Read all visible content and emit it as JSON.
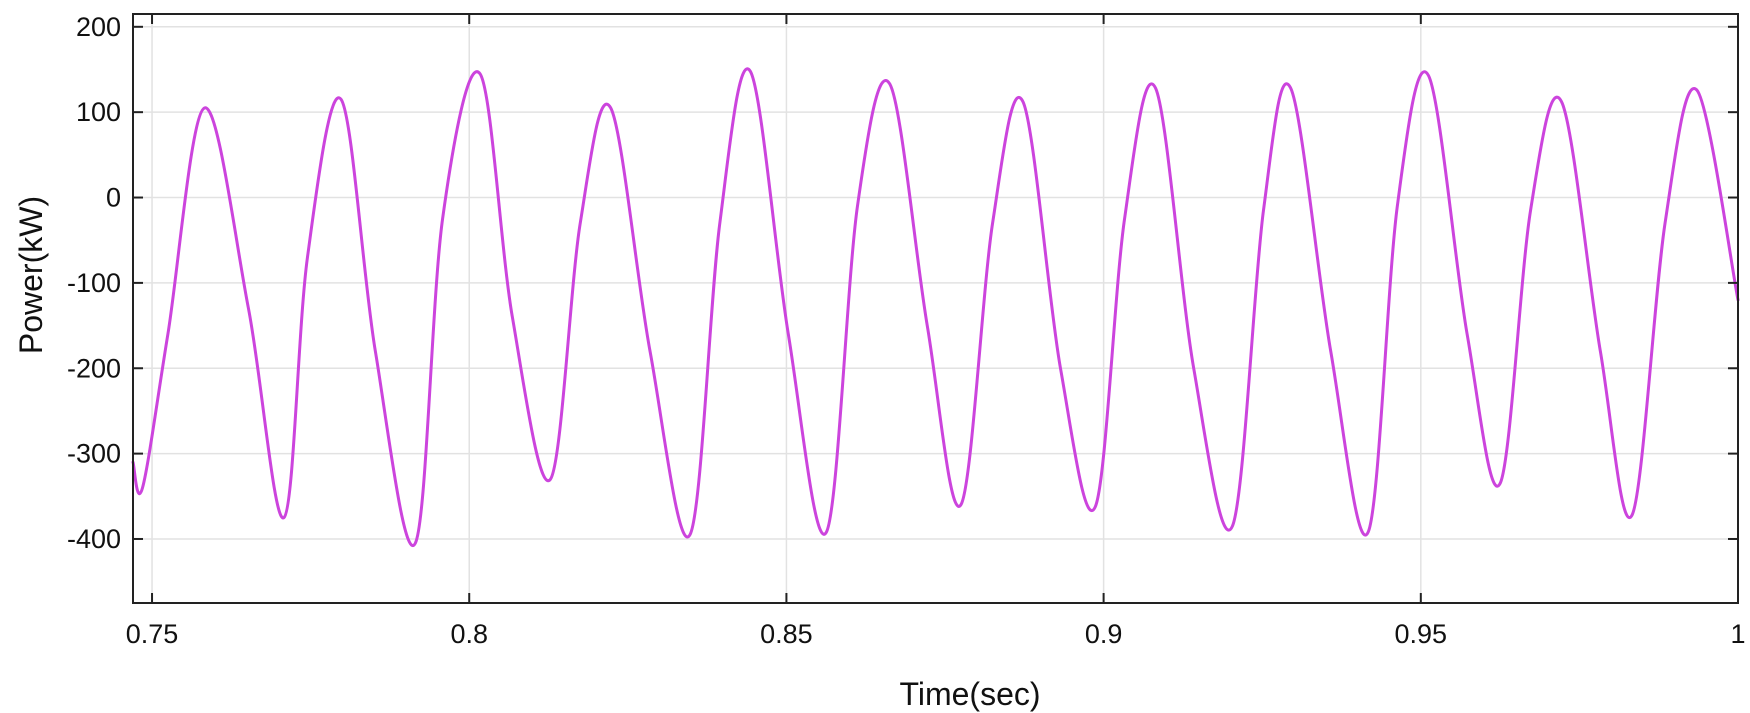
{
  "chart_data": {
    "type": "line",
    "title": "",
    "xlabel": "Time(sec)",
    "ylabel": "Power(kW)",
    "xlim": [
      0.747,
      1.0
    ],
    "ylim": [
      -475,
      215
    ],
    "xticks": [
      0.75,
      0.8,
      0.85,
      0.9,
      0.95,
      1.0
    ],
    "xtick_labels": [
      "0.75",
      "0.8",
      "0.85",
      "0.9",
      "0.95",
      "1"
    ],
    "yticks": [
      200,
      100,
      0,
      -100,
      -200,
      -300,
      -400
    ],
    "ytick_labels": [
      "200",
      "100",
      "0",
      "-100",
      "-200",
      "-300",
      "-400"
    ],
    "grid": true,
    "line_color": "#cc44dd",
    "series": [
      {
        "name": "",
        "x": [
          0.747,
          0.7485,
          0.7525,
          0.7583,
          0.7652,
          0.7708,
          0.7745,
          0.7798,
          0.7852,
          0.7915,
          0.7958,
          0.8017,
          0.8068,
          0.8128,
          0.8175,
          0.8223,
          0.8285,
          0.8348,
          0.8395,
          0.8443,
          0.8503,
          0.8563,
          0.8612,
          0.8663,
          0.8722,
          0.8775,
          0.8825,
          0.8873,
          0.8932,
          0.8987,
          0.9033,
          0.9082,
          0.9142,
          0.9203,
          0.9252,
          0.9295,
          0.9358,
          0.9417,
          0.9463,
          0.9512,
          0.9573,
          0.9625,
          0.9673,
          0.9722,
          0.9783,
          0.9833,
          0.9885,
          0.9935,
          1.0
        ],
        "y": [
          -310,
          -340,
          -160,
          105,
          -130,
          -375,
          -70,
          115,
          -180,
          -405,
          -25,
          145,
          -140,
          -330,
          -30,
          105,
          -180,
          -395,
          -30,
          148,
          -160,
          -392,
          -10,
          133,
          -150,
          -360,
          -30,
          112,
          -200,
          -362,
          -25,
          128,
          -200,
          -385,
          -15,
          128,
          -180,
          -392,
          -10,
          143,
          -160,
          -335,
          -15,
          112,
          -180,
          -372,
          -30,
          126,
          -120
        ]
      }
    ]
  }
}
